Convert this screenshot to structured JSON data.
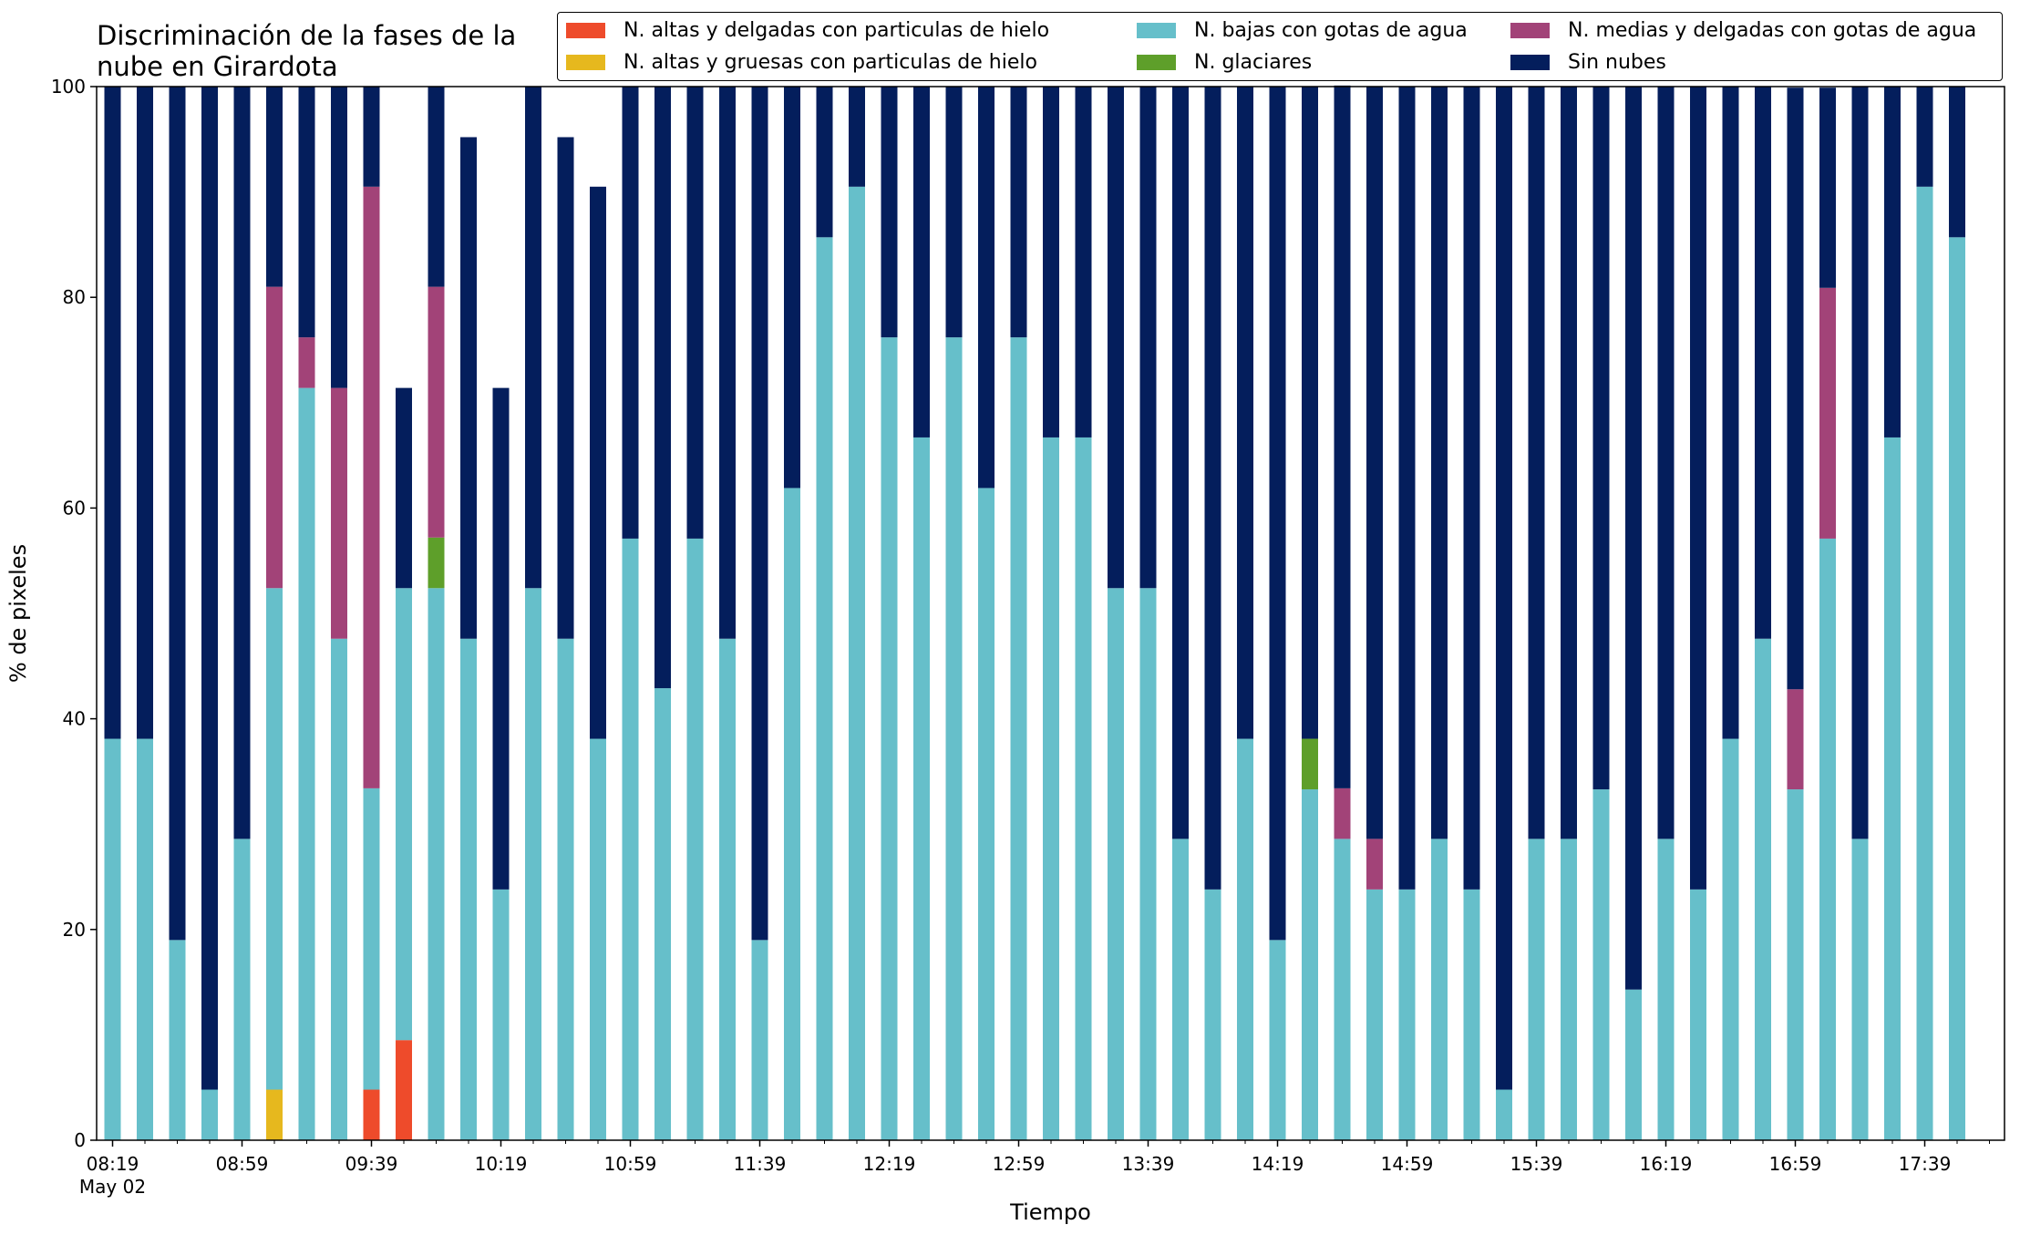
{
  "chart_data": {
    "type": "bar",
    "stacked": true,
    "title_lines": [
      "Discriminación de la fases de la",
      "nube en Girardota"
    ],
    "xlabel": "Tiempo",
    "ylabel": "% de pixeles",
    "ylim": [
      0,
      100
    ],
    "yticks": [
      0,
      20,
      40,
      60,
      80,
      100
    ],
    "x_tick_labels": [
      {
        "index": 0,
        "label": "08:19"
      },
      {
        "index": 4,
        "label": "08:59"
      },
      {
        "index": 8,
        "label": "09:39"
      },
      {
        "index": 12,
        "label": "10:19"
      },
      {
        "index": 16,
        "label": "10:59"
      },
      {
        "index": 20,
        "label": "11:39"
      },
      {
        "index": 24,
        "label": "12:19"
      },
      {
        "index": 28,
        "label": "12:59"
      },
      {
        "index": 32,
        "label": "13:39"
      },
      {
        "index": 36,
        "label": "14:19"
      },
      {
        "index": 40,
        "label": "14:59"
      },
      {
        "index": 44,
        "label": "15:39"
      },
      {
        "index": 48,
        "label": "16:19"
      },
      {
        "index": 52,
        "label": "16:59"
      },
      {
        "index": 56,
        "label": "17:39"
      }
    ],
    "x_date_label": "May 02",
    "legend_location": "top-right",
    "series": [
      {
        "name": "N. altas y delgadas con particulas de hielo",
        "color": "#ee4b2b",
        "values": [
          0,
          0,
          0,
          0,
          0,
          0,
          0,
          0,
          4.8,
          9.5,
          0,
          0,
          0,
          0,
          0,
          0,
          0,
          0,
          0,
          0,
          0,
          0,
          0,
          0,
          0,
          0,
          0,
          0,
          0,
          0,
          0,
          0,
          0,
          0,
          0,
          0,
          0,
          0,
          0,
          0,
          0,
          0,
          0,
          0,
          0,
          0,
          0,
          0,
          0,
          0,
          0,
          0,
          0,
          0,
          0,
          0,
          0,
          0
        ]
      },
      {
        "name": "N. altas y gruesas con particulas de hielo",
        "color": "#e6b81e",
        "values": [
          0,
          0,
          0,
          0,
          0,
          4.8,
          0,
          0,
          0,
          0,
          0,
          0,
          0,
          0,
          0,
          0,
          0,
          0,
          0,
          0,
          0,
          0,
          0,
          0,
          0,
          0,
          0,
          0,
          0,
          0,
          0,
          0,
          0,
          0,
          0,
          0,
          0,
          0,
          0,
          0,
          0,
          0,
          0,
          0,
          0,
          0,
          0,
          0,
          0,
          0,
          0,
          0,
          0,
          0,
          0,
          0,
          0,
          0
        ]
      },
      {
        "name": "N. bajas con gotas de agua",
        "color": "#66bfca",
        "values": [
          38.1,
          38.1,
          19.0,
          4.8,
          28.6,
          47.6,
          71.4,
          47.6,
          28.6,
          42.9,
          52.4,
          47.6,
          23.8,
          52.4,
          47.6,
          38.1,
          57.1,
          42.9,
          57.1,
          47.6,
          19.0,
          61.9,
          85.7,
          90.5,
          76.2,
          66.7,
          76.2,
          61.9,
          76.2,
          66.7,
          66.7,
          52.4,
          52.4,
          28.6,
          23.8,
          38.1,
          19.0,
          33.3,
          28.6,
          23.8,
          23.8,
          28.6,
          23.8,
          4.8,
          28.6,
          28.6,
          33.3,
          14.3,
          28.6,
          23.8,
          38.1,
          47.6,
          33.3,
          57.1,
          28.6,
          66.7,
          90.5,
          85.7
        ]
      },
      {
        "name": "N. glaciares",
        "color": "#5e9f2a",
        "values": [
          0,
          0,
          0,
          0,
          0,
          0,
          0,
          0,
          0,
          0,
          4.8,
          0,
          0,
          0,
          0,
          0,
          0,
          0,
          0,
          0,
          0,
          0,
          0,
          0,
          0,
          0,
          0,
          0,
          0,
          0,
          0,
          0,
          0,
          0,
          0,
          0,
          0,
          4.8,
          0,
          0,
          0,
          0,
          0,
          0,
          0,
          0,
          0,
          0,
          0,
          0,
          0,
          0,
          0,
          0,
          0,
          0,
          0,
          0
        ]
      },
      {
        "name": "N. medias y delgadas con gotas de agua",
        "color": "#a24378",
        "values": [
          0,
          0,
          0,
          0,
          0,
          28.6,
          4.8,
          23.8,
          57.1,
          0,
          23.8,
          0,
          0,
          0,
          0,
          0,
          0,
          0,
          0,
          0,
          0,
          0,
          0,
          0,
          0,
          0,
          0,
          0,
          0,
          0,
          0,
          0,
          0,
          0,
          0,
          0,
          0,
          0,
          4.8,
          4.8,
          0,
          0,
          0,
          0,
          0,
          0,
          0,
          0,
          0,
          0,
          0,
          0,
          9.5,
          23.8,
          0,
          0,
          0,
          0
        ]
      },
      {
        "name": "Sin nubes",
        "color": "#041e5c",
        "values": [
          61.9,
          61.9,
          81.0,
          95.2,
          71.4,
          19.0,
          23.8,
          28.6,
          9.5,
          19.0,
          19.0,
          47.6,
          47.6,
          47.6,
          47.6,
          52.4,
          42.9,
          57.1,
          42.9,
          52.4,
          81.0,
          38.1,
          14.3,
          9.5,
          23.8,
          33.3,
          23.8,
          38.1,
          23.8,
          33.3,
          33.3,
          47.6,
          47.6,
          71.4,
          76.2,
          61.9,
          81.0,
          61.9,
          66.7,
          71.4,
          76.2,
          71.4,
          76.2,
          95.2,
          71.4,
          71.4,
          66.7,
          85.7,
          71.4,
          76.2,
          61.9,
          52.4,
          57.1,
          19.0,
          71.4,
          33.3,
          9.5,
          14.3
        ]
      }
    ]
  }
}
